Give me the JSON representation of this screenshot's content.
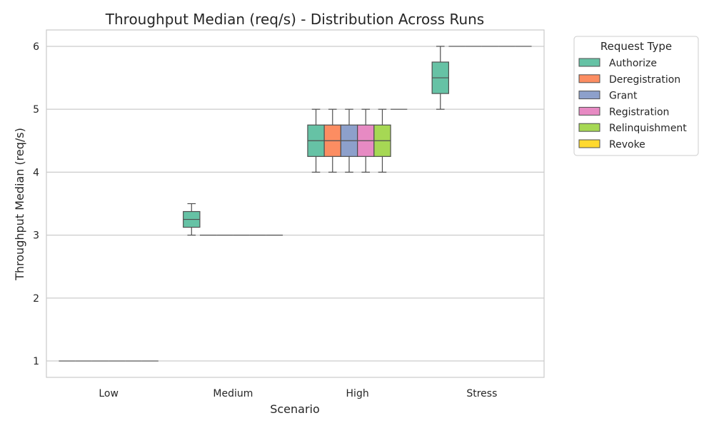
{
  "chart_data": {
    "type": "box",
    "title": "Throughput Median (req/s) - Distribution Across Runs",
    "xlabel": "Scenario",
    "ylabel": "Throughput Median (req/s)",
    "categories": [
      "Low",
      "Medium",
      "High",
      "Stress"
    ],
    "ylim": [
      0.74,
      6.26
    ],
    "yticks": [
      1,
      2,
      3,
      4,
      5,
      6
    ],
    "grid": "horizontal",
    "legend": {
      "title": "Request Type",
      "placement": "outside-right"
    },
    "series": [
      {
        "name": "Authorize",
        "color": "#66c2a5",
        "boxes": [
          {
            "min": 1,
            "q1": 1,
            "median": 1,
            "q3": 1,
            "max": 1
          },
          {
            "min": 3,
            "q1": 3.125,
            "median": 3.25,
            "q3": 3.375,
            "max": 3.5
          },
          {
            "min": 4,
            "q1": 4.25,
            "median": 4.5,
            "q3": 4.75,
            "max": 5
          },
          {
            "min": 5,
            "q1": 5.25,
            "median": 5.5,
            "q3": 5.75,
            "max": 6
          }
        ]
      },
      {
        "name": "Deregistration",
        "color": "#fc8d62",
        "boxes": [
          {
            "min": 1,
            "q1": 1,
            "median": 1,
            "q3": 1,
            "max": 1
          },
          {
            "min": 3,
            "q1": 3,
            "median": 3,
            "q3": 3,
            "max": 3
          },
          {
            "min": 4,
            "q1": 4.25,
            "median": 4.5,
            "q3": 4.75,
            "max": 5
          },
          {
            "min": 6,
            "q1": 6,
            "median": 6,
            "q3": 6,
            "max": 6
          }
        ]
      },
      {
        "name": "Grant",
        "color": "#8da0cb",
        "boxes": [
          {
            "min": 1,
            "q1": 1,
            "median": 1,
            "q3": 1,
            "max": 1
          },
          {
            "min": 3,
            "q1": 3,
            "median": 3,
            "q3": 3,
            "max": 3
          },
          {
            "min": 4,
            "q1": 4.25,
            "median": 4.5,
            "q3": 4.75,
            "max": 5
          },
          {
            "min": 6,
            "q1": 6,
            "median": 6,
            "q3": 6,
            "max": 6
          }
        ]
      },
      {
        "name": "Registration",
        "color": "#e78ac3",
        "boxes": [
          {
            "min": 1,
            "q1": 1,
            "median": 1,
            "q3": 1,
            "max": 1
          },
          {
            "min": 3,
            "q1": 3,
            "median": 3,
            "q3": 3,
            "max": 3
          },
          {
            "min": 4,
            "q1": 4.25,
            "median": 4.5,
            "q3": 4.75,
            "max": 5
          },
          {
            "min": 6,
            "q1": 6,
            "median": 6,
            "q3": 6,
            "max": 6
          }
        ]
      },
      {
        "name": "Relinquishment",
        "color": "#a6d854",
        "boxes": [
          {
            "min": 1,
            "q1": 1,
            "median": 1,
            "q3": 1,
            "max": 1
          },
          {
            "min": 3,
            "q1": 3,
            "median": 3,
            "q3": 3,
            "max": 3
          },
          {
            "min": 4,
            "q1": 4.25,
            "median": 4.5,
            "q3": 4.75,
            "max": 5
          },
          {
            "min": 6,
            "q1": 6,
            "median": 6,
            "q3": 6,
            "max": 6
          }
        ]
      },
      {
        "name": "Revoke",
        "color": "#ffd92f",
        "boxes": [
          {
            "min": 1,
            "q1": 1,
            "median": 1,
            "q3": 1,
            "max": 1
          },
          {
            "min": 3,
            "q1": 3,
            "median": 3,
            "q3": 3,
            "max": 3
          },
          {
            "min": 5,
            "q1": 5,
            "median": 5,
            "q3": 5,
            "max": 5
          },
          {
            "min": 6,
            "q1": 6,
            "median": 6,
            "q3": 6,
            "max": 6
          }
        ]
      }
    ]
  }
}
